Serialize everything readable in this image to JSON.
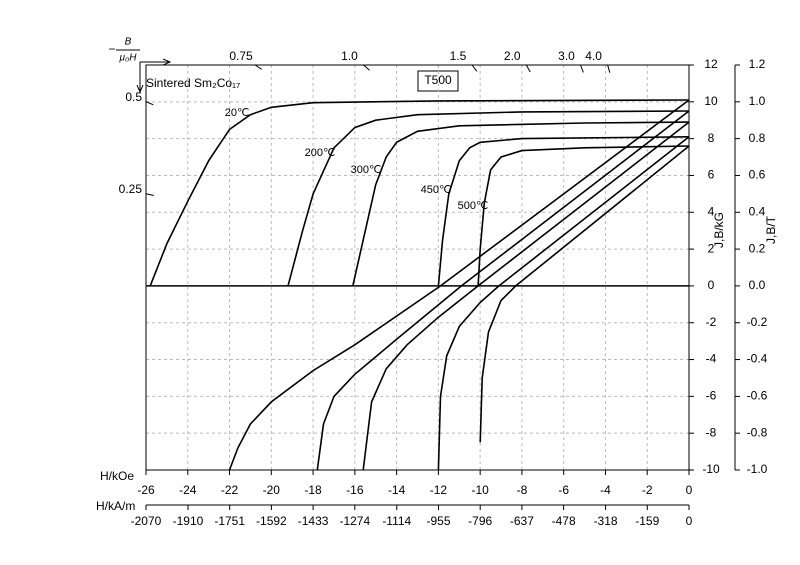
{
  "chart_data": {
    "type": "line",
    "annotations": {
      "material": "Sintered Sm₂Co₁₇",
      "grade": "T500"
    },
    "x_label": "H/kOe",
    "x2_label": "H/kA/m",
    "y_label": "J,B/kG",
    "y2_label": "J,B/T",
    "xlim": [
      -26,
      0
    ],
    "xticks": [
      -26,
      -24,
      -22,
      -20,
      -18,
      -16,
      -14,
      -12,
      -10,
      -8,
      -6,
      -4,
      -2,
      0
    ],
    "x2lim": [
      -2070,
      0
    ],
    "x2ticks": [
      -2070,
      -1910,
      -1751,
      -1592,
      -1433,
      -1274,
      -1114,
      -955,
      -796,
      -637,
      -478,
      -318,
      -159,
      0
    ],
    "ylim": [
      -10,
      12
    ],
    "yticks": [
      -10,
      -8,
      -6,
      -4,
      -2,
      0,
      2,
      4,
      6,
      8,
      10,
      12
    ],
    "y2lim": [
      -1,
      1.2
    ],
    "y2ticks": [
      {
        "value": -1,
        "label": "-1.0"
      },
      -0.8,
      -0.6,
      -0.4,
      -0.2,
      {
        "value": 0,
        "label": "0.0"
      },
      0.2,
      0.4,
      0.6,
      0.8,
      {
        "value": 1,
        "label": "1.0"
      },
      1.2
    ],
    "grid": true,
    "permeance": {
      "label_sign": "−",
      "label_numerator": "B",
      "label_denominator": "μ₀H",
      "ticks": [
        0.25,
        0.5,
        0.75,
        {
          "value": 1,
          "label": "1.0"
        },
        1.5,
        {
          "value": 2,
          "label": "2.0"
        },
        {
          "value": 3,
          "label": "3.0"
        },
        {
          "value": 4,
          "label": "4.0"
        }
      ]
    },
    "series": [
      {
        "name": "20℃",
        "color": "#000000",
        "j_x": [
          -25.8,
          -25,
          -24,
          -23,
          -22,
          -21,
          -20,
          -18,
          -12,
          0
        ],
        "j_values": [
          0,
          2.3,
          4.6,
          6.8,
          8.5,
          9.3,
          9.7,
          9.95,
          10.05,
          10.1
        ],
        "b_x": [
          0,
          -6,
          -11.9,
          -16,
          -18,
          -20,
          -21,
          -21.6,
          -22
        ],
        "b_values": [
          10.1,
          5,
          0,
          -3.2,
          -4.6,
          -6.3,
          -7.5,
          -8.8,
          -10
        ]
      },
      {
        "name": "200℃",
        "color": "#000000",
        "j_x": [
          -19.2,
          -18.5,
          -18,
          -17,
          -16,
          -15,
          -13,
          -8,
          0
        ],
        "j_values": [
          0,
          3,
          5,
          7.5,
          8.6,
          9.0,
          9.3,
          9.45,
          9.5
        ],
        "b_x": [
          0,
          -10.9,
          -14,
          -16,
          -17,
          -17.5,
          -17.8
        ],
        "b_values": [
          9.5,
          0,
          -2.9,
          -4.8,
          -6,
          -7.5,
          -10
        ]
      },
      {
        "name": "300℃",
        "color": "#000000",
        "j_x": [
          -16.1,
          -15.5,
          -15,
          -14.5,
          -14,
          -13,
          -11,
          -5,
          0
        ],
        "j_values": [
          0,
          3,
          5.5,
          7,
          7.8,
          8.4,
          8.7,
          8.85,
          8.9
        ],
        "b_x": [
          0,
          -10.1,
          -12,
          -13.5,
          -14.5,
          -15.2,
          -15.6
        ],
        "b_values": [
          8.9,
          0,
          -1.7,
          -3.2,
          -4.5,
          -6.3,
          -10
        ]
      },
      {
        "name": "450℃",
        "color": "#000000",
        "j_x": [
          -12,
          -11.8,
          -11.5,
          -11,
          -10.5,
          -10,
          -8,
          0
        ],
        "j_values": [
          0,
          2.5,
          5,
          6.8,
          7.5,
          7.8,
          8.0,
          8.1
        ],
        "b_x": [
          0,
          -9.1,
          -10,
          -11,
          -11.6,
          -11.9,
          -12
        ],
        "b_values": [
          8.1,
          0,
          -0.9,
          -2.2,
          -3.8,
          -6,
          -10
        ]
      },
      {
        "name": "500℃",
        "color": "#000000",
        "j_x": [
          -10.1,
          -10,
          -9.8,
          -9.5,
          -9,
          -8,
          -5,
          0
        ],
        "j_values": [
          0,
          2,
          4.5,
          6.3,
          7.0,
          7.35,
          7.5,
          7.6
        ],
        "b_x": [
          0,
          -8.3,
          -9,
          -9.6,
          -9.9,
          -10
        ],
        "b_values": [
          7.6,
          0,
          -0.8,
          -2.5,
          -5,
          -8.5
        ]
      }
    ]
  }
}
